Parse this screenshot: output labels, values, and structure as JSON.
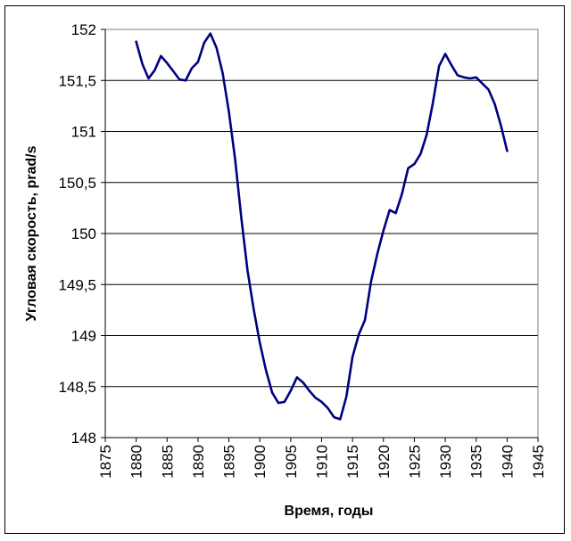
{
  "chart_data": {
    "type": "line",
    "xlabel": "Время, годы",
    "ylabel": "Угловая скорость, prad/s",
    "xlim": [
      1875,
      1945
    ],
    "ylim": [
      148,
      152
    ],
    "xticks": [
      1875,
      1880,
      1885,
      1890,
      1895,
      1900,
      1905,
      1910,
      1915,
      1920,
      1925,
      1930,
      1935,
      1940,
      1945
    ],
    "yticks": [
      148,
      148.5,
      149,
      149.5,
      150,
      150.5,
      151,
      151.5,
      152
    ],
    "ytick_labels": [
      "148",
      "148,5",
      "149",
      "149,5",
      "150",
      "150,5",
      "151",
      "151,5",
      "152"
    ],
    "grid": "horizontal",
    "line_color": "#000080",
    "series": [
      {
        "x": [
          1880,
          1881,
          1882,
          1883,
          1884,
          1885,
          1886,
          1887,
          1888,
          1889,
          1890,
          1891,
          1892,
          1893,
          1894,
          1895,
          1896,
          1897,
          1898,
          1899,
          1900,
          1901,
          1902,
          1903,
          1904,
          1905,
          1906,
          1907,
          1908,
          1909,
          1910,
          1911,
          1912,
          1913,
          1914,
          1915,
          1916,
          1917,
          1918,
          1919,
          1920,
          1921,
          1922,
          1923,
          1924,
          1925,
          1926,
          1927,
          1928,
          1929,
          1930,
          1931,
          1932,
          1933,
          1934,
          1935,
          1936,
          1937,
          1938,
          1939,
          1940
        ],
        "values": [
          151.88,
          151.66,
          151.52,
          151.6,
          151.74,
          151.67,
          151.59,
          151.51,
          151.5,
          151.62,
          151.68,
          151.87,
          151.96,
          151.82,
          151.57,
          151.19,
          150.73,
          150.16,
          149.64,
          149.26,
          148.93,
          148.66,
          148.44,
          148.34,
          148.35,
          148.46,
          148.59,
          148.54,
          148.46,
          148.39,
          148.35,
          148.29,
          148.2,
          148.18,
          148.4,
          148.79,
          149.01,
          149.15,
          149.53,
          149.8,
          150.03,
          150.23,
          150.2,
          150.39,
          150.64,
          150.68,
          150.78,
          150.97,
          151.28,
          151.64,
          151.76,
          151.65,
          151.55,
          151.53,
          151.52,
          151.53,
          151.47,
          151.41,
          151.27,
          151.06,
          150.81
        ]
      }
    ]
  }
}
